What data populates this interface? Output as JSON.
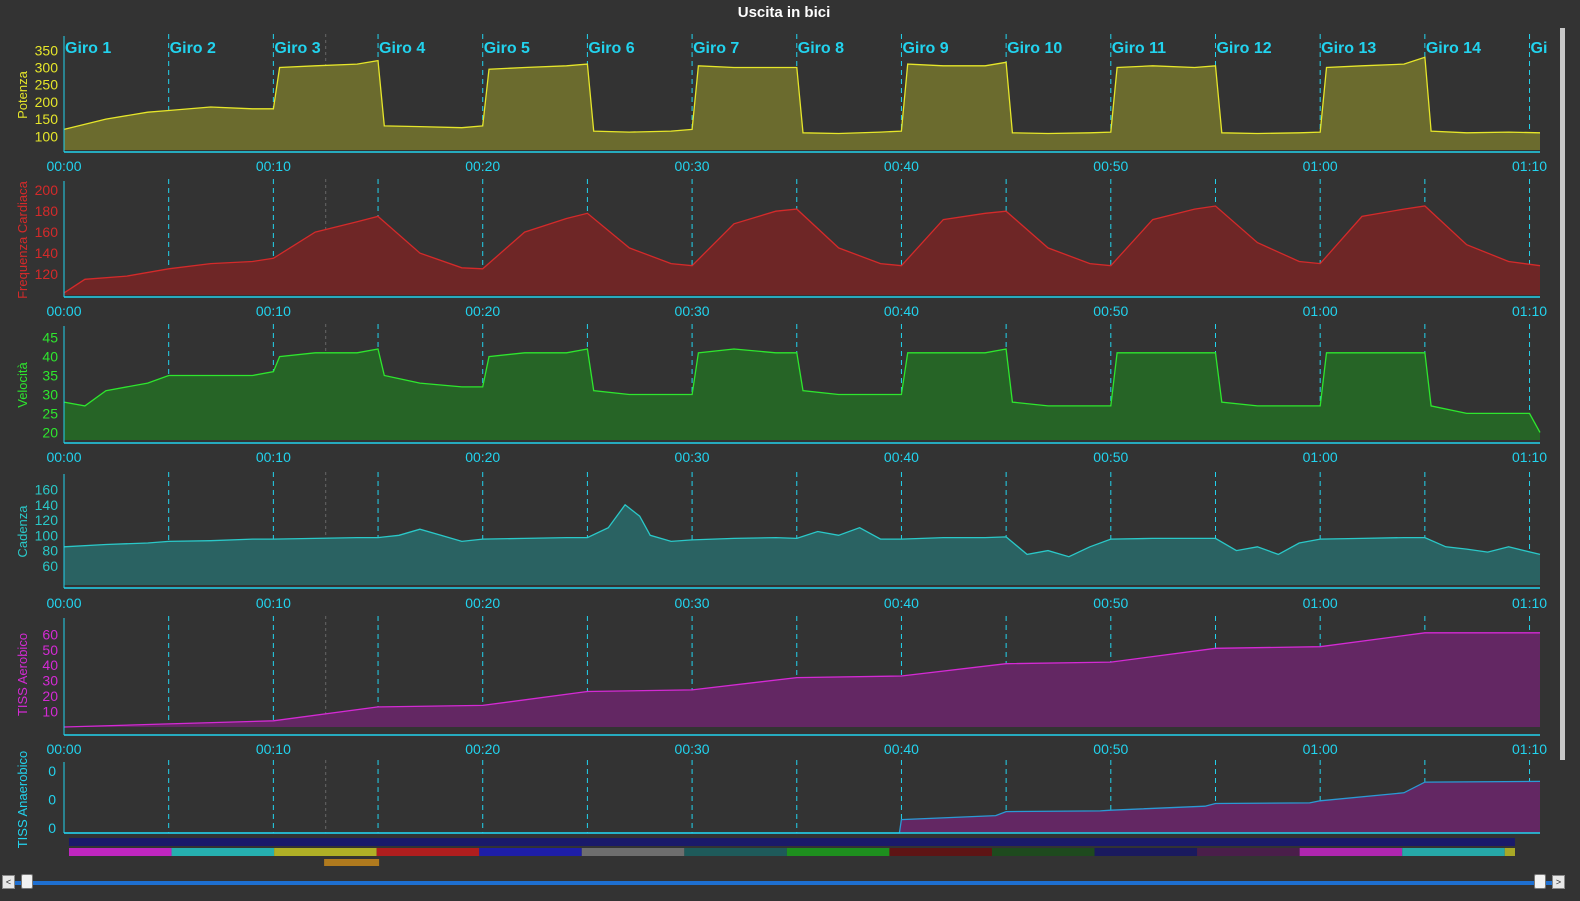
{
  "window": {
    "title": "Uscita in bici"
  },
  "colors": {
    "background": "#333333",
    "axis": "#22d3ee",
    "lap_line": "#22d3ee",
    "power": "#e6e62a",
    "power_fill": "#6b6b2e",
    "hr": "#d42a2a",
    "hr_fill": "#6e2626",
    "speed": "#2ee62e",
    "speed_fill": "#266426",
    "cadence": "#2ac8c8",
    "cadence_fill": "#2a6262",
    "tiss_aer": "#d42ad4",
    "tiss_aer_fill": "#632763",
    "tiss_an": "#2a9ad4",
    "tiss_an_fill": "#632763"
  },
  "chart_data": [
    {
      "type": "area",
      "ylabel": "Potenza",
      "yticks": [
        100,
        150,
        200,
        250,
        300,
        350
      ],
      "ylim": [
        60,
        380
      ],
      "x_unit": "minutes",
      "xlim": [
        0,
        70.5
      ],
      "xticks": [
        "00:00",
        "00:10",
        "00:20",
        "00:30",
        "00:40",
        "00:50",
        "01:00",
        "01:10"
      ],
      "lap_labels": [
        "Giro 1",
        "Giro 2",
        "Giro 3",
        "Giro 4",
        "Giro 5",
        "Giro 6",
        "Giro 7",
        "Giro 8",
        "Giro 9",
        "Giro 10",
        "Giro 11",
        "Giro 12",
        "Giro 13",
        "Giro 14",
        "Gi"
      ],
      "x": [
        0,
        2,
        4,
        5,
        7,
        9,
        10,
        10.3,
        12,
        14,
        15,
        15.3,
        17,
        19,
        20,
        20.3,
        22,
        24,
        25,
        25.3,
        27,
        29,
        30,
        30.3,
        32,
        34,
        35,
        35.3,
        37,
        39,
        40,
        40.3,
        42,
        44,
        45,
        45.3,
        47,
        49,
        50,
        50.3,
        52,
        54,
        55,
        55.3,
        57,
        59,
        60,
        60.3,
        62,
        64,
        65,
        65.3,
        67,
        69,
        70.5
      ],
      "values": [
        120,
        150,
        170,
        175,
        185,
        180,
        180,
        300,
        305,
        310,
        320,
        130,
        128,
        125,
        130,
        295,
        300,
        305,
        310,
        115,
        112,
        115,
        120,
        305,
        300,
        300,
        300,
        110,
        108,
        112,
        115,
        310,
        305,
        305,
        315,
        110,
        108,
        110,
        112,
        300,
        305,
        300,
        305,
        110,
        108,
        110,
        112,
        300,
        305,
        310,
        330,
        115,
        110,
        112,
        110
      ]
    },
    {
      "type": "area",
      "ylabel": "Frequenza Cardiaca",
      "yticks": [
        120,
        140,
        160,
        180,
        200
      ],
      "ylim": [
        100,
        205
      ],
      "x_unit": "minutes",
      "xlim": [
        0,
        70.5
      ],
      "xticks": [
        "00:00",
        "00:10",
        "00:20",
        "00:30",
        "00:40",
        "00:50",
        "01:00",
        "01:10"
      ],
      "x": [
        0,
        1,
        3,
        5,
        7,
        9,
        10,
        12,
        14,
        15,
        17,
        19,
        20,
        22,
        24,
        25,
        27,
        29,
        30,
        32,
        34,
        35,
        37,
        39,
        40,
        42,
        44,
        45,
        47,
        49,
        50,
        52,
        54,
        55,
        57,
        59,
        60,
        62,
        64,
        65,
        67,
        69,
        70.5
      ],
      "values": [
        102,
        115,
        118,
        125,
        130,
        132,
        135,
        160,
        170,
        175,
        140,
        126,
        125,
        160,
        173,
        178,
        145,
        130,
        128,
        168,
        180,
        182,
        145,
        130,
        128,
        172,
        178,
        180,
        145,
        130,
        128,
        172,
        182,
        185,
        150,
        132,
        130,
        175,
        182,
        185,
        148,
        132,
        128
      ]
    },
    {
      "type": "area",
      "ylabel": "Velocità",
      "yticks": [
        20,
        25,
        30,
        35,
        40,
        45
      ],
      "ylim": [
        18,
        47
      ],
      "x_unit": "minutes",
      "xlim": [
        0,
        70.5
      ],
      "xticks": [
        "00:00",
        "00:10",
        "00:20",
        "00:30",
        "00:40",
        "00:50",
        "01:00",
        "01:10"
      ],
      "x": [
        0,
        1,
        2,
        4,
        5,
        7,
        9,
        10,
        10.3,
        12,
        14,
        15,
        15.3,
        17,
        19,
        20,
        20.3,
        22,
        24,
        25,
        25.3,
        27,
        29,
        30,
        30.3,
        32,
        34,
        35,
        35.3,
        37,
        39,
        40,
        40.3,
        42,
        44,
        45,
        45.3,
        47,
        49,
        50,
        50.3,
        52,
        54,
        55,
        55.3,
        57,
        59,
        60,
        60.3,
        62,
        64,
        65,
        65.3,
        67,
        69,
        70,
        70.5
      ],
      "values": [
        28,
        27,
        31,
        33,
        35,
        35,
        35,
        36,
        40,
        41,
        41,
        42,
        35,
        33,
        32,
        32,
        40,
        41,
        41,
        42,
        31,
        30,
        30,
        30,
        41,
        42,
        41,
        41,
        31,
        30,
        30,
        30,
        41,
        41,
        41,
        42,
        28,
        27,
        27,
        27,
        41,
        41,
        41,
        41,
        28,
        27,
        27,
        27,
        41,
        41,
        41,
        41,
        27,
        25,
        25,
        25,
        20
      ]
    },
    {
      "type": "area",
      "ylabel": "Cadenza",
      "yticks": [
        60,
        80,
        100,
        120,
        140,
        160
      ],
      "ylim": [
        35,
        175
      ],
      "x_unit": "minutes",
      "xlim": [
        0,
        70.5
      ],
      "xticks": [
        "00:00",
        "00:10",
        "00:20",
        "00:30",
        "00:40",
        "00:50",
        "01:00",
        "01:10"
      ],
      "x": [
        0,
        2,
        4,
        5,
        7,
        9,
        10,
        12,
        14,
        15,
        16,
        17,
        18,
        19,
        20,
        22,
        24,
        25,
        26,
        26.8,
        27.5,
        28,
        29,
        30,
        32,
        34,
        35,
        36,
        37,
        38,
        39,
        40,
        42,
        44,
        45,
        46,
        47,
        48,
        49,
        50,
        52,
        54,
        55,
        56,
        57,
        58,
        59,
        60,
        62,
        64,
        65,
        66,
        67,
        68,
        69,
        70.5
      ],
      "values": [
        85,
        88,
        90,
        92,
        93,
        95,
        95,
        96,
        97,
        97,
        100,
        108,
        100,
        92,
        95,
        96,
        97,
        97,
        110,
        140,
        125,
        100,
        92,
        94,
        96,
        97,
        96,
        105,
        100,
        110,
        95,
        95,
        97,
        97,
        98,
        75,
        80,
        72,
        85,
        95,
        96,
        96,
        96,
        80,
        85,
        75,
        90,
        95,
        96,
        97,
        97,
        85,
        82,
        78,
        85,
        75
      ]
    },
    {
      "type": "area",
      "ylabel": "TISS Aerobico",
      "yticks": [
        10,
        20,
        30,
        40,
        50,
        60
      ],
      "ylim": [
        0,
        68
      ],
      "x_unit": "minutes",
      "xlim": [
        0,
        70.5
      ],
      "xticks": [
        "00:00",
        "00:10",
        "00:20",
        "00:30",
        "00:40",
        "00:50",
        "01:00",
        "01:10"
      ],
      "x": [
        0,
        5,
        10,
        15,
        20,
        25,
        30,
        35,
        40,
        45,
        50,
        55,
        60,
        65,
        70.5
      ],
      "values": [
        0,
        2,
        4,
        13,
        14,
        23,
        24,
        32,
        33,
        41,
        42,
        51,
        52,
        61,
        61
      ]
    },
    {
      "type": "area",
      "ylabel": "TISS Anaerobico",
      "ytick_labels": [
        "0",
        "0",
        "0"
      ],
      "ylim": [
        0,
        1
      ],
      "x_unit": "minutes",
      "xlim": [
        0,
        70.5
      ],
      "x": [
        0,
        39.9,
        40,
        44.5,
        45,
        49.5,
        50,
        54.5,
        55,
        59.5,
        60,
        64,
        65,
        70.5
      ],
      "values": [
        0,
        0,
        0.2,
        0.26,
        0.32,
        0.33,
        0.34,
        0.4,
        0.44,
        0.45,
        0.48,
        0.6,
        0.76,
        0.77
      ]
    }
  ],
  "lap_bar_colors": [
    "#c026c0",
    "#26b0b0",
    "#b0b026",
    "#b01e1e",
    "#1e1ea8",
    "#6e6e6e",
    "#1e5a5a",
    "#1e8f1e",
    "#5e1414",
    "#1e4a1e",
    "#1a1a5e",
    "#4a1e4a",
    "#b026b0",
    "#26a8a8",
    "#a8a826"
  ],
  "lap_bar_top_color": "#1a1a6a",
  "lap_bar_selected_color": "#b07a1e",
  "lap_bar_selected_index": 2,
  "scrollbar": {
    "left_button": "<",
    "right_button": ">"
  }
}
